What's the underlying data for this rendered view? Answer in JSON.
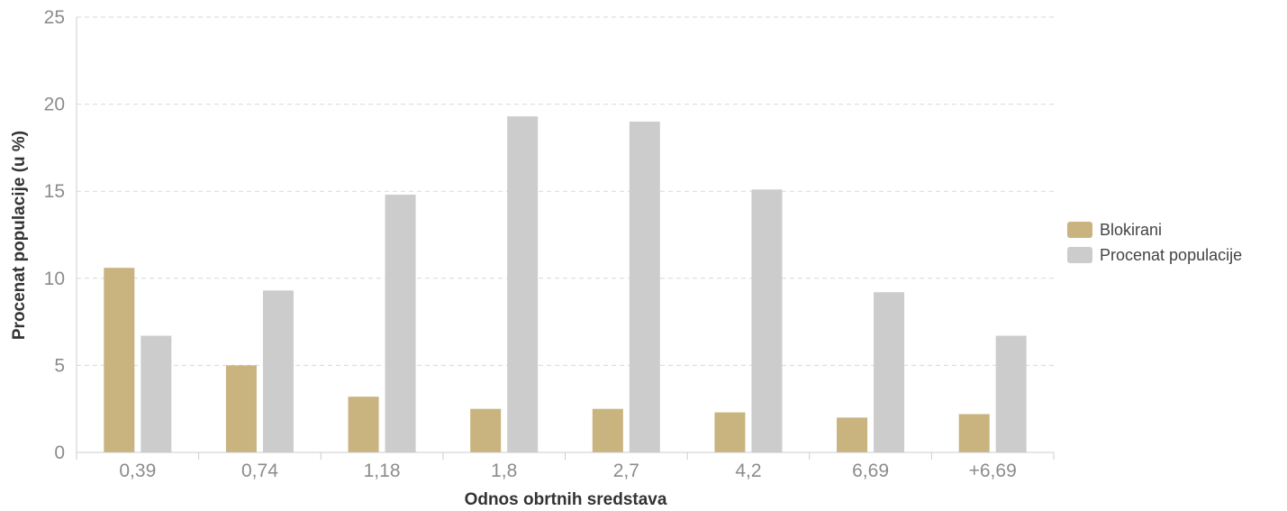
{
  "chart_data": {
    "type": "bar",
    "title": "",
    "xlabel": "Odnos obrtnih sredstava",
    "ylabel": "Procenat populacije (u %)",
    "categories": [
      "0,39",
      "0,74",
      "1,18",
      "1,8",
      "2,7",
      "4,2",
      "6,69",
      "+6,69"
    ],
    "ylim": [
      0,
      25
    ],
    "yticks": [
      "0",
      "5",
      "10",
      "15",
      "20",
      "25"
    ],
    "grid": true,
    "legend_position": "right",
    "series": [
      {
        "name": "Blokirani",
        "color": "#c9b37e",
        "values": [
          10.6,
          5.0,
          3.2,
          2.5,
          2.5,
          2.3,
          2.0,
          2.2
        ]
      },
      {
        "name": "Procenat populacije",
        "color": "#cccccc",
        "values": [
          6.7,
          9.3,
          14.8,
          19.3,
          19.0,
          15.1,
          9.2,
          6.7
        ]
      }
    ]
  }
}
